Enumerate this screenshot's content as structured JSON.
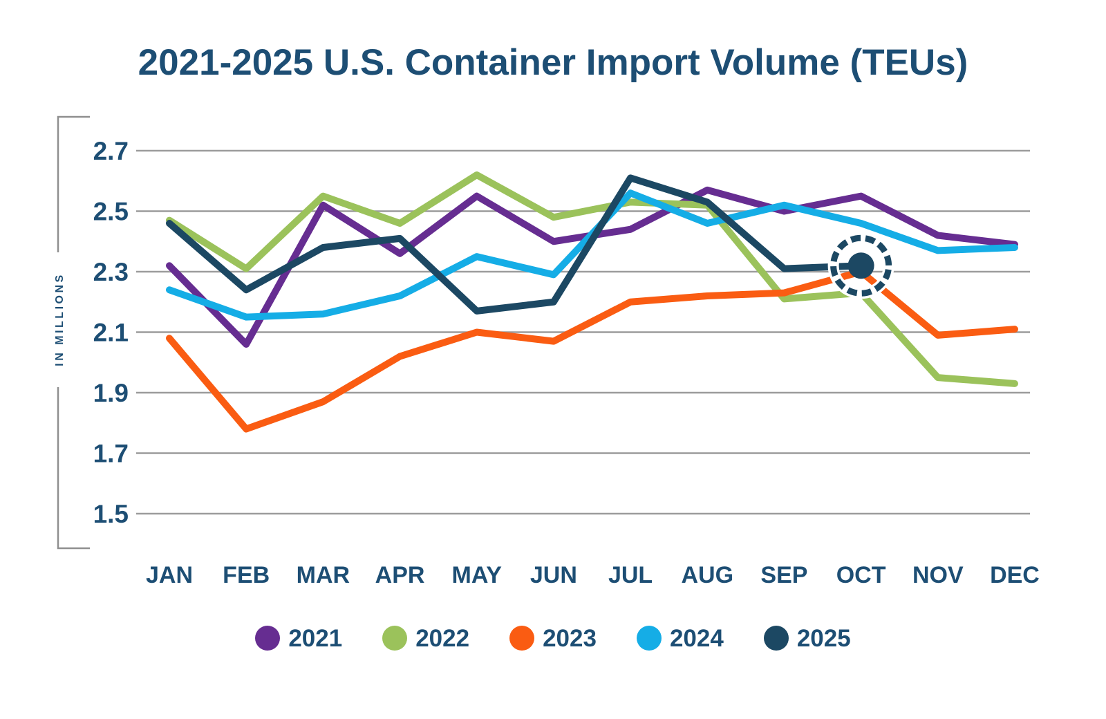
{
  "title": "2021-2025 U.S. Container Import Volume (TEUs)",
  "y_axis": {
    "label": "IN MILLIONS",
    "ticks": [
      "2.7",
      "2.5",
      "2.3",
      "2.1",
      "1.9",
      "1.7",
      "1.5"
    ]
  },
  "chart_data": {
    "type": "line",
    "categories": [
      "JAN",
      "FEB",
      "MAR",
      "APR",
      "MAY",
      "JUN",
      "JUL",
      "AUG",
      "SEP",
      "OCT",
      "NOV",
      "DEC"
    ],
    "title": "2021-2025 U.S. Container Import Volume (TEUs)",
    "xlabel": "",
    "ylabel": "IN MILLIONS",
    "ylim": [
      1.5,
      2.7
    ],
    "y_tick_step": 0.2,
    "grid": true,
    "legend_position": "bottom",
    "series": [
      {
        "name": "2021",
        "color": "#662D91",
        "values": [
          2.32,
          2.06,
          2.52,
          2.36,
          2.55,
          2.4,
          2.44,
          2.57,
          2.5,
          2.55,
          2.42,
          2.39
        ]
      },
      {
        "name": "2022",
        "color": "#9BC25B",
        "values": [
          2.47,
          2.31,
          2.55,
          2.46,
          2.62,
          2.48,
          2.53,
          2.52,
          2.21,
          2.23,
          1.95,
          1.93
        ]
      },
      {
        "name": "2023",
        "color": "#FA5C12",
        "values": [
          2.08,
          1.78,
          1.87,
          2.02,
          2.1,
          2.07,
          2.2,
          2.22,
          2.23,
          2.3,
          2.09,
          2.11
        ]
      },
      {
        "name": "2024",
        "color": "#15ADE6",
        "values": [
          2.24,
          2.15,
          2.16,
          2.22,
          2.35,
          2.29,
          2.56,
          2.46,
          2.52,
          2.46,
          2.37,
          2.38
        ]
      },
      {
        "name": "2025",
        "color": "#1C4863",
        "values": [
          2.46,
          2.24,
          2.38,
          2.41,
          2.17,
          2.2,
          2.61,
          2.53,
          2.31,
          2.32
        ]
      }
    ],
    "highlight": {
      "series": "2025",
      "category": "OCT",
      "value": 2.32,
      "style": "filled-dot-with-dashed-circle"
    }
  },
  "colors": {
    "text": "#1D4E74",
    "grid": "#9C9C9C",
    "axis_bracket": "#8F8F8F",
    "background": "#FFFFFF"
  }
}
